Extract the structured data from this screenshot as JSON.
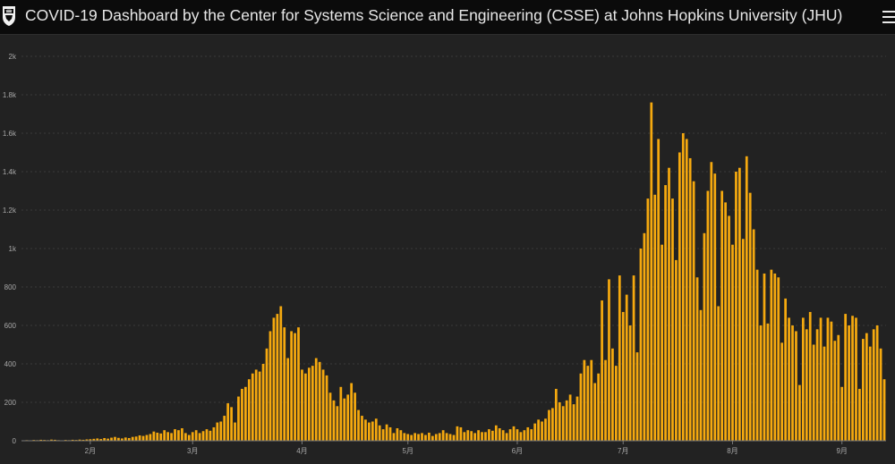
{
  "header": {
    "title": "COVID-19 Dashboard by the Center for Systems Science and Engineering (CSSE) at Johns Hopkins University (JHU)",
    "logo_icon": "jhu-shield-icon",
    "menu_icon": "hamburger-menu-icon"
  },
  "colors": {
    "background": "#222222",
    "header_background": "#0b0b0b",
    "bar": "#f5a90f",
    "gridline": "#3b3b3b",
    "tick_text": "#a8a8a8"
  },
  "chart_data": {
    "type": "bar",
    "title": "",
    "xlabel": "",
    "ylabel": "",
    "ylim": [
      0,
      2000
    ],
    "y_ticks": [
      0,
      200,
      400,
      600,
      800,
      1000,
      1200,
      1400,
      1600,
      1800,
      2000
    ],
    "y_tick_labels": [
      "0",
      "200",
      "400",
      "600",
      "800",
      "1k",
      "1.2k",
      "1.4k",
      "1.6k",
      "1.8k",
      "2k"
    ],
    "x_tick_labels": [
      {
        "label": "2月",
        "day": 19
      },
      {
        "label": "3月",
        "day": 48
      },
      {
        "label": "4月",
        "day": 79
      },
      {
        "label": "5月",
        "day": 109
      },
      {
        "label": "6月",
        "day": 140
      },
      {
        "label": "7月",
        "day": 170
      },
      {
        "label": "8月",
        "day": 201
      },
      {
        "label": "9月",
        "day": 232
      }
    ],
    "grid": true,
    "legend": "none",
    "series": [
      {
        "values": [
          2,
          3,
          2,
          4,
          3,
          5,
          4,
          3,
          6,
          5,
          3,
          2,
          4,
          3,
          5,
          4,
          6,
          5,
          7,
          8,
          10,
          12,
          9,
          14,
          11,
          16,
          20,
          15,
          12,
          17,
          14,
          20,
          22,
          28,
          25,
          30,
          35,
          48,
          42,
          38,
          55,
          45,
          40,
          60,
          55,
          65,
          40,
          30,
          45,
          55,
          40,
          50,
          60,
          52,
          70,
          95,
          100,
          130,
          195,
          175,
          95,
          230,
          270,
          280,
          320,
          350,
          370,
          360,
          400,
          480,
          570,
          640,
          660,
          700,
          590,
          430,
          570,
          560,
          590,
          370,
          350,
          380,
          390,
          430,
          410,
          370,
          340,
          250,
          210,
          180,
          280,
          220,
          240,
          300,
          250,
          160,
          130,
          110,
          95,
          100,
          115,
          80,
          60,
          85,
          70,
          40,
          65,
          55,
          40,
          35,
          30,
          40,
          35,
          40,
          30,
          42,
          25,
          35,
          40,
          55,
          40,
          35,
          30,
          75,
          70,
          45,
          55,
          50,
          40,
          55,
          45,
          45,
          60,
          52,
          80,
          65,
          55,
          40,
          60,
          75,
          60,
          45,
          55,
          70,
          60,
          90,
          110,
          100,
          115,
          160,
          170,
          270,
          200,
          180,
          210,
          240,
          190,
          230,
          350,
          420,
          390,
          420,
          300,
          350,
          730,
          420,
          840,
          480,
          390,
          860,
          670,
          760,
          600,
          860,
          460,
          1000,
          1080,
          1260,
          1760,
          1280,
          1570,
          1020,
          1330,
          1420,
          1260,
          940,
          1500,
          1600,
          1570,
          1470,
          1350,
          850,
          680,
          1080,
          1300,
          1450,
          1390,
          700,
          1300,
          1240,
          1170,
          1020,
          1400,
          1420,
          1050,
          1480,
          1290,
          1100,
          890,
          600,
          870,
          610,
          890,
          870,
          850,
          510,
          740,
          640,
          600,
          570,
          290,
          640,
          580,
          670,
          500,
          580,
          640,
          490,
          640,
          620,
          520,
          550,
          280,
          660,
          600,
          650,
          640,
          270,
          530,
          560,
          490,
          580,
          600,
          480,
          320
        ]
      }
    ]
  }
}
